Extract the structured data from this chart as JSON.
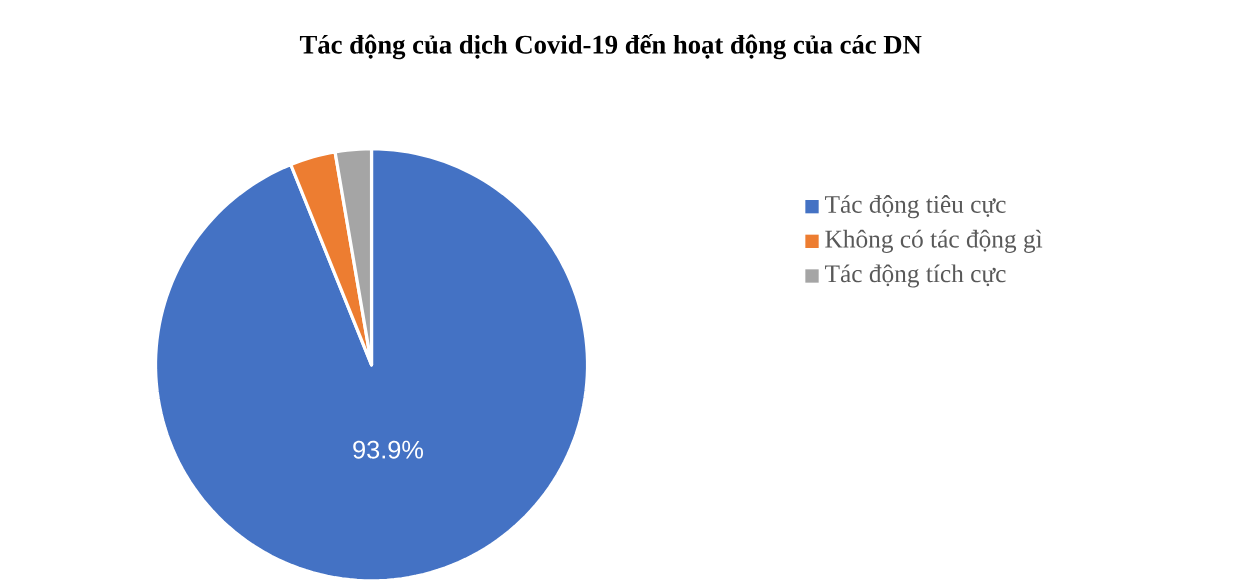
{
  "chart_data": {
    "type": "pie",
    "title": "Tác động của dịch Covid-19 đến hoạt động của các DN",
    "categories": [
      "Tác động tiêu cực",
      "Không có tác động gì",
      "Tác động tích cực"
    ],
    "values": [
      93.9,
      3.4,
      2.7
    ],
    "colors": [
      "#4472c4",
      "#ed7d31",
      "#a5a5a5"
    ],
    "value_labels": [
      "93.9%",
      null,
      null
    ],
    "legend": "right"
  }
}
